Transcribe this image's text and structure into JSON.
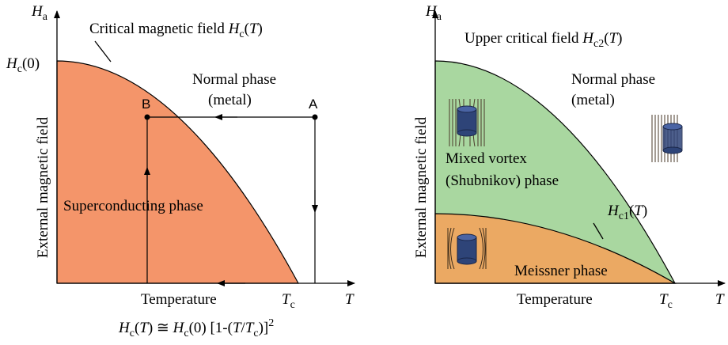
{
  "left": {
    "y_symbol": [
      "H",
      "a"
    ],
    "critical_label": [
      "Critical magnetic field ",
      "H",
      "c",
      "(",
      "T",
      ")"
    ],
    "hc0_label": [
      "H",
      "c",
      "(0)"
    ],
    "normal_phase": "Normal phase",
    "normal_metal": "(metal)",
    "point_b": "B",
    "point_a": "A",
    "superconducting": "Superconducting phase",
    "y_axis_label": "External magnetic field",
    "x_axis_label": "Temperature",
    "tc_label": [
      "T",
      "c"
    ],
    "x_symbol": "T",
    "formula": [
      "H",
      "c",
      "(",
      "T",
      ") ≅ ",
      "H",
      "c",
      "(0) [1-(",
      "T",
      "/",
      "T",
      "c",
      ")]",
      "2"
    ]
  },
  "right": {
    "y_symbol": [
      "H",
      "a"
    ],
    "upper_label": [
      "Upper critical field ",
      "H",
      "c2",
      "(",
      "T",
      ")"
    ],
    "normal_phase": "Normal phase",
    "normal_metal": "(metal)",
    "mixed_1": "Mixed vortex",
    "mixed_2": "(Shubnikov) phase",
    "hc1_label": [
      "H",
      "c1",
      "(",
      "T",
      ")"
    ],
    "meissner": "Meissner phase",
    "y_axis_label": "External magnetic field",
    "x_axis_label": "Temperature",
    "tc_label": [
      "T",
      "c"
    ],
    "x_symbol": "T"
  }
}
